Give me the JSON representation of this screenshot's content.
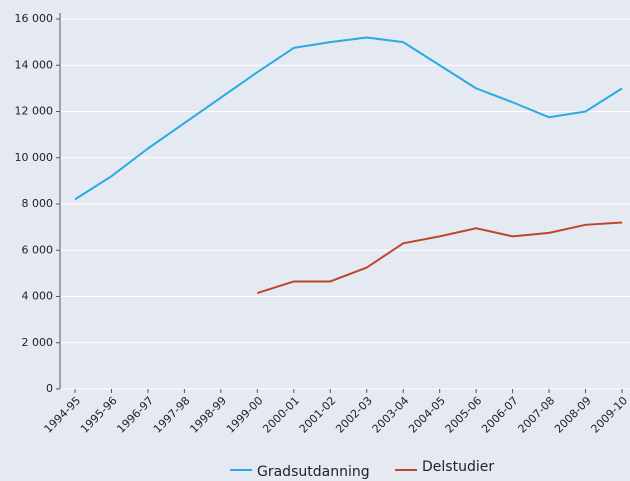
{
  "chart_data": {
    "type": "line",
    "categories": [
      "1994-95",
      "1995-96",
      "1996-97",
      "1997-98",
      "1998-99",
      "1999-00",
      "2000-01",
      "2001-02",
      "2002-03",
      "2003-04",
      "2004-05",
      "2005-06",
      "2006-07",
      "2007-08",
      "2008-09",
      "2009-10"
    ],
    "series": [
      {
        "name": "Gradsutdanning",
        "color": "#29abe2",
        "values": [
          8200,
          9200,
          10400,
          11500,
          12600,
          13700,
          14750,
          15000,
          15200,
          15000,
          14000,
          13000,
          12400,
          11750,
          12000,
          13000
        ]
      },
      {
        "name": "Delstudier",
        "color": "#c0462a",
        "values": [
          null,
          null,
          null,
          null,
          null,
          4150,
          4650,
          4650,
          5250,
          6300,
          6600,
          6950,
          6600,
          6750,
          7100,
          7200
        ]
      }
    ],
    "ylim": [
      0,
      16000
    ],
    "yticks": [
      0,
      {
        "value": 2000,
        "label": "2 000"
      },
      {
        "value": 4000,
        "label": "4 000"
      },
      {
        "value": 6000,
        "label": "6 000"
      },
      {
        "value": 8000,
        "label": "8 000"
      },
      {
        "value": 10000,
        "label": "10 000"
      },
      {
        "value": 12000,
        "label": "12 000"
      },
      {
        "value": 14000,
        "label": "14 000"
      },
      {
        "value": 16000,
        "label": "16 000"
      }
    ],
    "grid": true
  }
}
